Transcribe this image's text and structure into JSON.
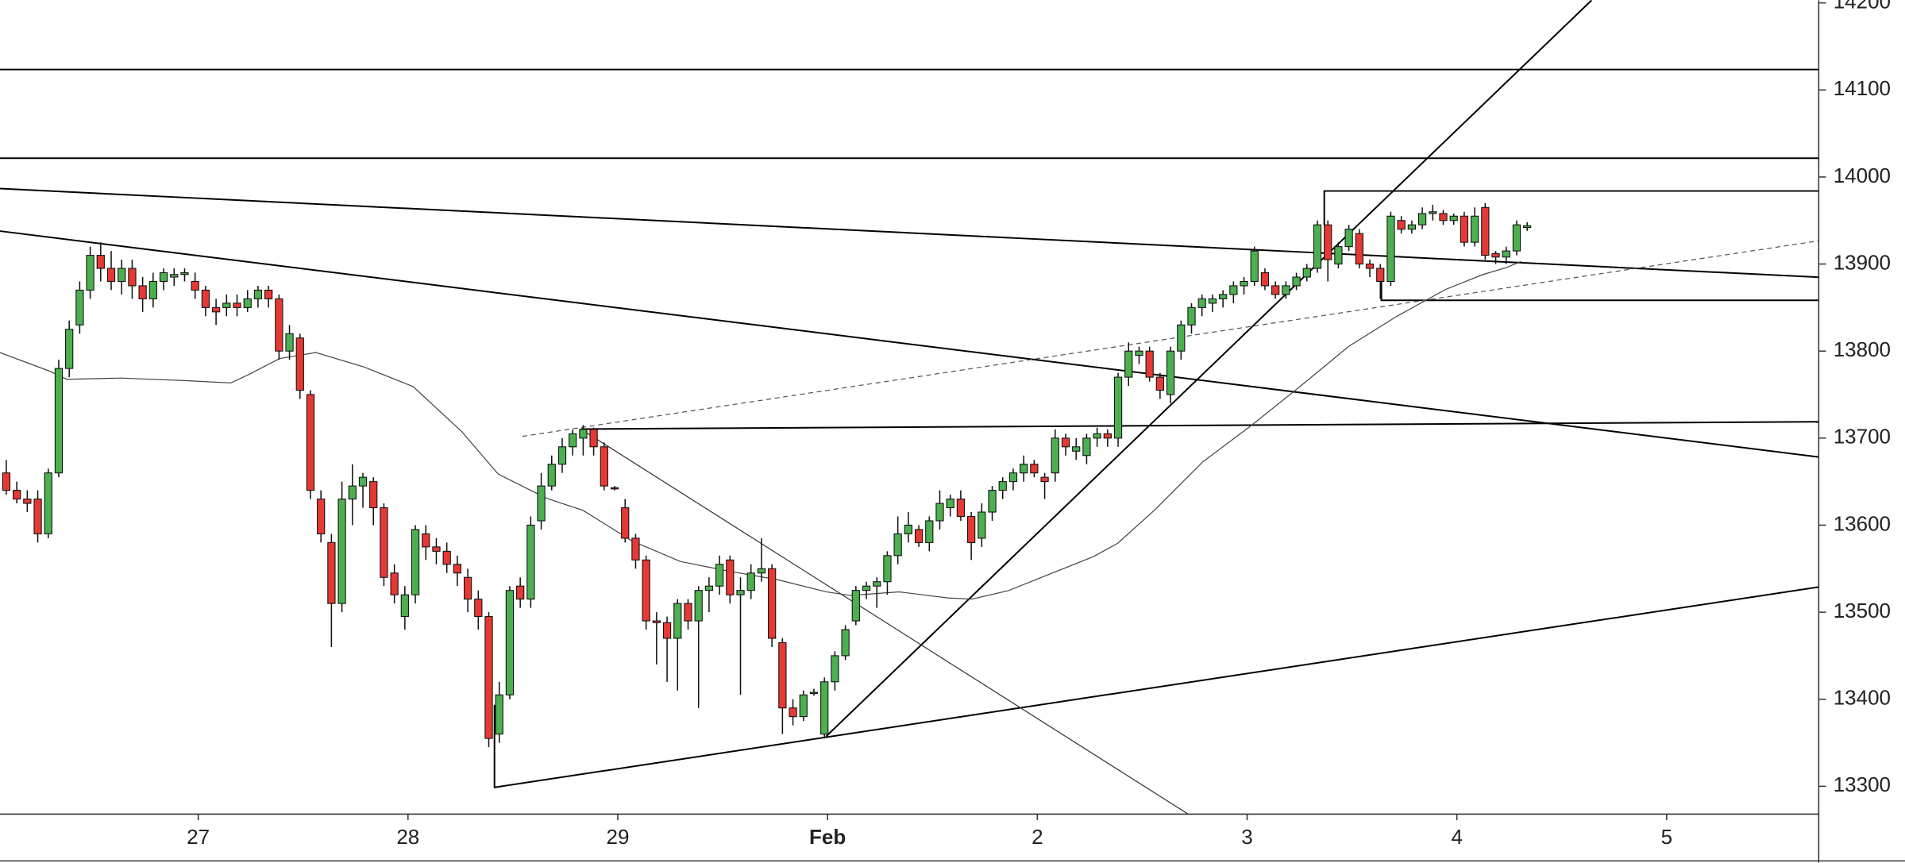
{
  "chart_data": {
    "type": "candlestick",
    "up_color": "#4caf50",
    "down_color": "#e53935",
    "ylim": [
      13268,
      14203
    ],
    "yticks": [
      13300,
      13400,
      13500,
      13600,
      13700,
      13800,
      13900,
      14000,
      14100,
      14200
    ],
    "xlim": [
      -0.6,
      172.8
    ],
    "xticks": [
      {
        "value": 18.3,
        "label": "27"
      },
      {
        "value": 38.3,
        "label": "28"
      },
      {
        "value": 58.3,
        "label": "29"
      },
      {
        "value": 78.3,
        "label": "Feb"
      },
      {
        "value": 98.3,
        "label": "2"
      },
      {
        "value": 118.3,
        "label": "3"
      },
      {
        "value": 138.3,
        "label": "4"
      },
      {
        "value": 158.3,
        "label": "5"
      }
    ],
    "ohlc": [
      [
        13660,
        13675,
        13635,
        13640
      ],
      [
        13640,
        13650,
        13625,
        13630
      ],
      [
        13630,
        13640,
        13615,
        13625
      ],
      [
        13630,
        13640,
        13580,
        13590
      ],
      [
        13590,
        13665,
        13585,
        13660
      ],
      [
        13660,
        13790,
        13655,
        13780
      ],
      [
        13780,
        13835,
        13770,
        13825
      ],
      [
        13830,
        13880,
        13820,
        13870
      ],
      [
        13870,
        13920,
        13860,
        13910
      ],
      [
        13910,
        13925,
        13880,
        13895
      ],
      [
        13895,
        13915,
        13870,
        13880
      ],
      [
        13880,
        13905,
        13865,
        13895
      ],
      [
        13895,
        13905,
        13860,
        13875
      ],
      [
        13875,
        13885,
        13845,
        13860
      ],
      [
        13860,
        13890,
        13850,
        13880
      ],
      [
        13880,
        13895,
        13870,
        13890
      ],
      [
        13885,
        13895,
        13875,
        13888
      ],
      [
        13888,
        13895,
        13880,
        13890
      ],
      [
        13880,
        13890,
        13860,
        13870
      ],
      [
        13870,
        13875,
        13840,
        13850
      ],
      [
        13850,
        13860,
        13830,
        13845
      ],
      [
        13850,
        13865,
        13840,
        13855
      ],
      [
        13855,
        13865,
        13840,
        13850
      ],
      [
        13850,
        13870,
        13845,
        13860
      ],
      [
        13860,
        13875,
        13850,
        13870
      ],
      [
        13870,
        13875,
        13850,
        13860
      ],
      [
        13860,
        13865,
        13790,
        13800
      ],
      [
        13800,
        13830,
        13790,
        13820
      ],
      [
        13815,
        13820,
        13745,
        13755
      ],
      [
        13750,
        13755,
        13630,
        13640
      ],
      [
        13630,
        13640,
        13580,
        13590
      ],
      [
        13580,
        13590,
        13460,
        13510
      ],
      [
        13510,
        13650,
        13500,
        13630
      ],
      [
        13630,
        13670,
        13600,
        13645
      ],
      [
        13645,
        13660,
        13620,
        13655
      ],
      [
        13650,
        13655,
        13600,
        13620
      ],
      [
        13620,
        13625,
        13530,
        13540
      ],
      [
        13545,
        13555,
        13510,
        13520
      ],
      [
        13495,
        13530,
        13480,
        13520
      ],
      [
        13520,
        13600,
        13510,
        13595
      ],
      [
        13590,
        13600,
        13560,
        13575
      ],
      [
        13575,
        13585,
        13555,
        13570
      ],
      [
        13570,
        13580,
        13545,
        13555
      ],
      [
        13555,
        13565,
        13530,
        13545
      ],
      [
        13540,
        13550,
        13500,
        13515
      ],
      [
        13515,
        13525,
        13480,
        13495
      ],
      [
        13495,
        13500,
        13345,
        13355
      ],
      [
        13360,
        13420,
        13350,
        13405
      ],
      [
        13405,
        13530,
        13400,
        13525
      ],
      [
        13530,
        13540,
        13505,
        13515
      ],
      [
        13515,
        13610,
        13505,
        13600
      ],
      [
        13605,
        13660,
        13595,
        13645
      ],
      [
        13645,
        13680,
        13640,
        13670
      ],
      [
        13670,
        13700,
        13660,
        13690
      ],
      [
        13690,
        13710,
        13680,
        13705
      ],
      [
        13700,
        13715,
        13680,
        13710
      ],
      [
        13710,
        13712,
        13680,
        13690
      ],
      [
        13690,
        13695,
        13640,
        13645
      ],
      [
        13643,
        13645,
        13640,
        13642
      ],
      [
        13620,
        13630,
        13580,
        13585
      ],
      [
        13585,
        13590,
        13550,
        13560
      ],
      [
        13560,
        13565,
        13480,
        13490
      ],
      [
        13490,
        13500,
        13440,
        13488
      ],
      [
        13488,
        13495,
        13420,
        13470
      ],
      [
        13470,
        13515,
        13410,
        13510
      ],
      [
        13510,
        13515,
        13480,
        13490
      ],
      [
        13490,
        13530,
        13390,
        13525
      ],
      [
        13525,
        13540,
        13500,
        13530
      ],
      [
        13530,
        13565,
        13520,
        13555
      ],
      [
        13560,
        13565,
        13510,
        13520
      ],
      [
        13520,
        13540,
        13405,
        13525
      ],
      [
        13525,
        13555,
        13515,
        13545
      ],
      [
        13545,
        13585,
        13535,
        13550
      ],
      [
        13550,
        13555,
        13460,
        13470
      ],
      [
        13465,
        13470,
        13360,
        13390
      ],
      [
        13390,
        13400,
        13370,
        13380
      ],
      [
        13380,
        13410,
        13375,
        13405
      ],
      [
        13408,
        13412,
        13404,
        13408
      ],
      [
        13360,
        13425,
        13355,
        13420
      ],
      [
        13420,
        13455,
        13410,
        13450
      ],
      [
        13450,
        13485,
        13445,
        13480
      ],
      [
        13490,
        13530,
        13485,
        13525
      ],
      [
        13525,
        13535,
        13515,
        13530
      ],
      [
        13530,
        13540,
        13505,
        13535
      ],
      [
        13535,
        13570,
        13520,
        13565
      ],
      [
        13565,
        13610,
        13555,
        13590
      ],
      [
        13590,
        13615,
        13580,
        13600
      ],
      [
        13595,
        13600,
        13575,
        13580
      ],
      [
        13580,
        13610,
        13570,
        13605
      ],
      [
        13605,
        13640,
        13595,
        13625
      ],
      [
        13620,
        13635,
        13610,
        13630
      ],
      [
        13630,
        13640,
        13605,
        13610
      ],
      [
        13610,
        13615,
        13560,
        13580
      ],
      [
        13585,
        13625,
        13575,
        13615
      ],
      [
        13615,
        13645,
        13605,
        13640
      ],
      [
        13640,
        13655,
        13630,
        13650
      ],
      [
        13650,
        13665,
        13640,
        13660
      ],
      [
        13660,
        13680,
        13650,
        13670
      ],
      [
        13670,
        13675,
        13655,
        13660
      ],
      [
        13655,
        13660,
        13630,
        13650
      ],
      [
        13660,
        13710,
        13650,
        13700
      ],
      [
        13700,
        13705,
        13680,
        13690
      ],
      [
        13685,
        13700,
        13675,
        13690
      ],
      [
        13680,
        13705,
        13670,
        13700
      ],
      [
        13700,
        13712,
        13690,
        13705
      ],
      [
        13705,
        13710,
        13690,
        13700
      ],
      [
        13700,
        13775,
        13690,
        13770
      ],
      [
        13770,
        13810,
        13760,
        13800
      ],
      [
        13795,
        13805,
        13785,
        13800
      ],
      [
        13800,
        13805,
        13765,
        13770
      ],
      [
        13770,
        13775,
        13745,
        13755
      ],
      [
        13750,
        13805,
        13740,
        13800
      ],
      [
        13800,
        13835,
        13790,
        13830
      ],
      [
        13830,
        13855,
        13820,
        13850
      ],
      [
        13850,
        13865,
        13840,
        13860
      ],
      [
        13855,
        13865,
        13845,
        13860
      ],
      [
        13860,
        13870,
        13850,
        13865
      ],
      [
        13865,
        13880,
        13855,
        13875
      ],
      [
        13875,
        13885,
        13865,
        13880
      ],
      [
        13880,
        13920,
        13875,
        13915
      ],
      [
        13890,
        13895,
        13870,
        13875
      ],
      [
        13875,
        13880,
        13860,
        13865
      ],
      [
        13865,
        13880,
        13860,
        13875
      ],
      [
        13875,
        13890,
        13870,
        13885
      ],
      [
        13885,
        13900,
        13880,
        13895
      ],
      [
        13895,
        13950,
        13890,
        13945
      ],
      [
        13945,
        13950,
        13880,
        13905
      ],
      [
        13900,
        13925,
        13895,
        13920
      ],
      [
        13920,
        13945,
        13915,
        13940
      ],
      [
        13935,
        13940,
        13895,
        13900
      ],
      [
        13900,
        13905,
        13885,
        13895
      ],
      [
        13895,
        13900,
        13860,
        13880
      ],
      [
        13880,
        13960,
        13875,
        13955
      ],
      [
        13950,
        13955,
        13935,
        13940
      ],
      [
        13940,
        13950,
        13935,
        13945
      ],
      [
        13945,
        13965,
        13940,
        13958
      ],
      [
        13958,
        13968,
        13950,
        13960
      ],
      [
        13958,
        13962,
        13945,
        13950
      ],
      [
        13950,
        13958,
        13945,
        13955
      ],
      [
        13955,
        13960,
        13920,
        13925
      ],
      [
        13925,
        13965,
        13920,
        13955
      ],
      [
        13965,
        13970,
        13905,
        13910
      ],
      [
        13912,
        13915,
        13900,
        13908
      ],
      [
        13908,
        13920,
        13900,
        13915
      ],
      [
        13915,
        13950,
        13910,
        13945
      ],
      [
        13942,
        13948,
        13938,
        13944
      ]
    ]
  }
}
